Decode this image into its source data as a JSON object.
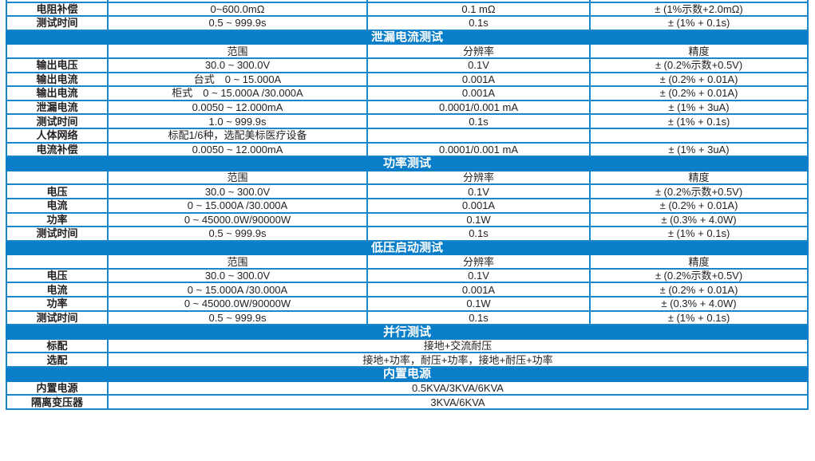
{
  "top_rows": [
    {
      "name": "",
      "range": "",
      "resolution": "",
      "accuracy": ""
    },
    {
      "name": "电阻补偿",
      "range": "0~600.0mΩ",
      "resolution": "0.1 mΩ",
      "accuracy": "± (1%示数+2.0mΩ)"
    },
    {
      "name": "测试时间",
      "range": "0.5 ~ 999.9s",
      "resolution": "0.1s",
      "accuracy": "± (1% + 0.1s)"
    }
  ],
  "header": {
    "range": "范围",
    "resolution": "分辨率",
    "accuracy": "精度"
  },
  "leakage": {
    "title": "泄漏电流测试",
    "rows": [
      {
        "name": "输出电压",
        "range": "30.0 ~ 300.0V",
        "resolution": "0.1V",
        "accuracy": "± (0.2%示数+0.5V)"
      },
      {
        "name": "输出电流",
        "range": "台式　0 ~ 15.000A",
        "resolution": "0.001A",
        "accuracy": "± (0.2% + 0.01A)"
      },
      {
        "name": "输出电流",
        "range": "柜式　0 ~ 15.000A /30.000A",
        "resolution": "0.001A",
        "accuracy": "± (0.2% + 0.01A)"
      },
      {
        "name": "泄漏电流",
        "range": "0.0050 ~ 12.000mA",
        "resolution": "0.0001/0.001 mA",
        "accuracy": "± (1% + 3uA)"
      },
      {
        "name": "测试时间",
        "range": "1.0 ~ 999.9s",
        "resolution": "0.1s",
        "accuracy": "± (1% + 0.1s)"
      },
      {
        "name": "人体网络",
        "range": "标配1/6种，选配美标医疗设备",
        "resolution": "",
        "accuracy": ""
      },
      {
        "name": "电流补偿",
        "range": "0.0050 ~ 12.000mA",
        "resolution": "0.0001/0.001 mA",
        "accuracy": "± (1% + 3uA)"
      }
    ]
  },
  "power": {
    "title": "功率测试",
    "rows": [
      {
        "name": "电压",
        "range": "30.0 ~ 300.0V",
        "resolution": "0.1V",
        "accuracy": "± (0.2%示数+0.5V)"
      },
      {
        "name": "电流",
        "range": "0 ~ 15.000A /30.000A",
        "resolution": "0.001A",
        "accuracy": "± (0.2% + 0.01A)"
      },
      {
        "name": "功率",
        "range": "0 ~ 45000.0W/90000W",
        "resolution": "0.1W",
        "accuracy": "± (0.3% + 4.0W)"
      },
      {
        "name": "测试时间",
        "range": "0.5 ~ 999.9s",
        "resolution": "0.1s",
        "accuracy": "± (1% + 0.1s)"
      }
    ]
  },
  "lowvolt": {
    "title": "低压启动测试",
    "rows": [
      {
        "name": "电压",
        "range": "30.0 ~ 300.0V",
        "resolution": "0.1V",
        "accuracy": "± (0.2%示数+0.5V)"
      },
      {
        "name": "电流",
        "range": "0 ~ 15.000A /30.000A",
        "resolution": "0.001A",
        "accuracy": "± (0.2% + 0.01A)"
      },
      {
        "name": "功率",
        "range": "0 ~ 45000.0W/90000W",
        "resolution": "0.1W",
        "accuracy": "± (0.3% + 4.0W)"
      },
      {
        "name": "测试时间",
        "range": "0.5 ~ 999.9s",
        "resolution": "0.1s",
        "accuracy": "± (1% + 0.1s)"
      }
    ]
  },
  "parallel": {
    "title": "并行测试",
    "rows": [
      {
        "name": "标配",
        "value": "接地+交流耐压"
      },
      {
        "name": "选配",
        "value": "接地+功率，耐压+功率，接地+耐压+功率"
      }
    ]
  },
  "supply": {
    "title": "内置电源",
    "rows": [
      {
        "name": "内置电源",
        "value": "0.5KVA/3KVA/6KVA"
      },
      {
        "name": "隔离变压器",
        "value": "3KVA/6KVA"
      }
    ]
  }
}
